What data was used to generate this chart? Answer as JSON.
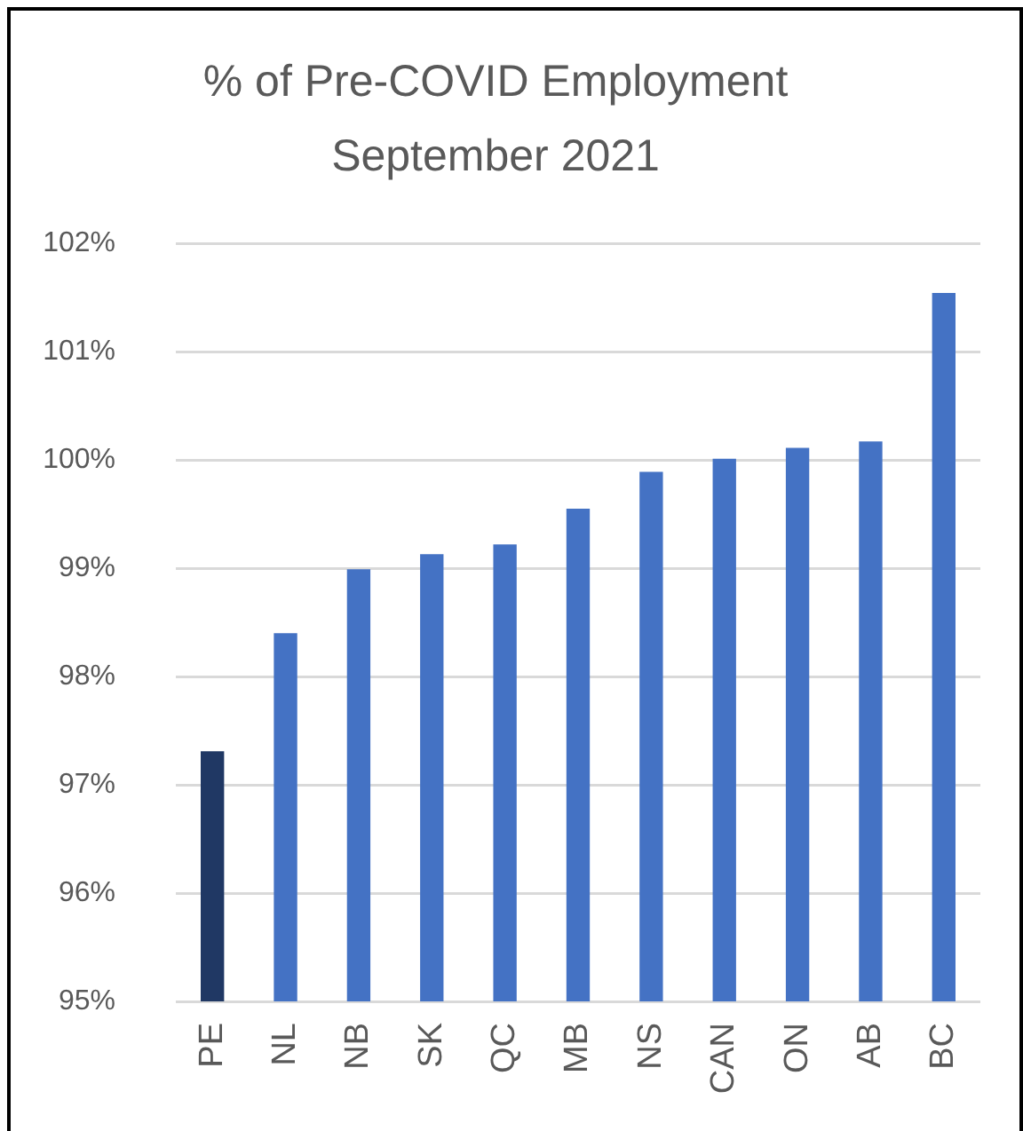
{
  "chart_data": {
    "type": "bar",
    "title": "% of Pre-COVID Employment",
    "subtitle": "September 2021",
    "categories": [
      "PE",
      "NL",
      "NB",
      "SK",
      "QC",
      "MB",
      "NS",
      "CAN",
      "ON",
      "AB",
      "BC"
    ],
    "values": [
      97.31,
      98.4,
      98.99,
      99.13,
      99.22,
      99.55,
      99.89,
      100.01,
      100.11,
      100.17,
      101.54
    ],
    "colors": [
      "#203864",
      "#4472c4",
      "#4472c4",
      "#4472c4",
      "#4472c4",
      "#4472c4",
      "#4472c4",
      "#4472c4",
      "#4472c4",
      "#4472c4",
      "#4472c4"
    ],
    "ylim": [
      95,
      102
    ],
    "yticks": [
      {
        "value": 95,
        "label": "95%"
      },
      {
        "value": 96,
        "label": "96%"
      },
      {
        "value": 97,
        "label": "97%"
      },
      {
        "value": 98,
        "label": "98%"
      },
      {
        "value": 99,
        "label": "99%"
      },
      {
        "value": 100,
        "label": "100%"
      },
      {
        "value": 101,
        "label": "101%"
      },
      {
        "value": 102,
        "label": "102%"
      }
    ],
    "grid": "y",
    "legend": false
  }
}
